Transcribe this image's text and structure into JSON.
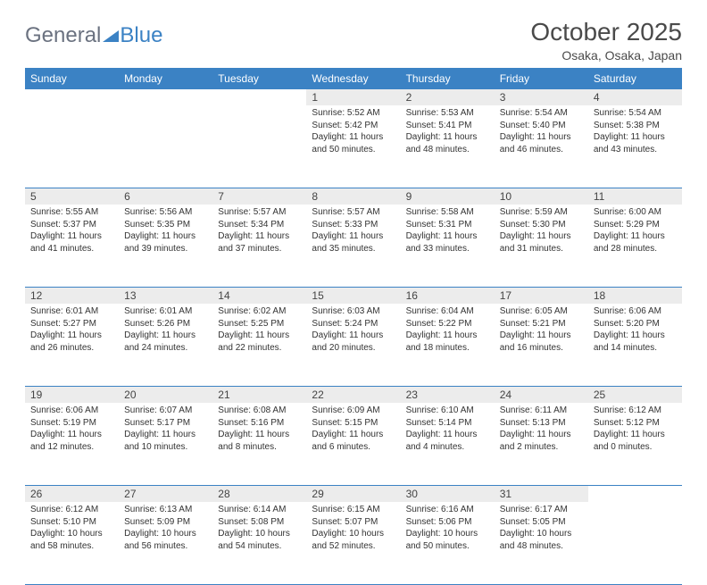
{
  "brand": {
    "part1": "General",
    "part2": "Blue",
    "logo_color_text": "#6b7280",
    "logo_color_accent": "#3b82c4"
  },
  "title": "October 2025",
  "location": "Osaka, Osaka, Japan",
  "theme": {
    "header_bg": "#3b82c4",
    "header_text": "#ffffff",
    "daynum_bg": "#ececec",
    "rule_color": "#3b82c4",
    "body_text": "#333333",
    "title_color": "#4a4a4a"
  },
  "weekdays": [
    "Sunday",
    "Monday",
    "Tuesday",
    "Wednesday",
    "Thursday",
    "Friday",
    "Saturday"
  ],
  "weeks": [
    [
      null,
      null,
      null,
      {
        "n": "1",
        "sr": "Sunrise: 5:52 AM",
        "ss": "Sunset: 5:42 PM",
        "d1": "Daylight: 11 hours",
        "d2": "and 50 minutes."
      },
      {
        "n": "2",
        "sr": "Sunrise: 5:53 AM",
        "ss": "Sunset: 5:41 PM",
        "d1": "Daylight: 11 hours",
        "d2": "and 48 minutes."
      },
      {
        "n": "3",
        "sr": "Sunrise: 5:54 AM",
        "ss": "Sunset: 5:40 PM",
        "d1": "Daylight: 11 hours",
        "d2": "and 46 minutes."
      },
      {
        "n": "4",
        "sr": "Sunrise: 5:54 AM",
        "ss": "Sunset: 5:38 PM",
        "d1": "Daylight: 11 hours",
        "d2": "and 43 minutes."
      }
    ],
    [
      {
        "n": "5",
        "sr": "Sunrise: 5:55 AM",
        "ss": "Sunset: 5:37 PM",
        "d1": "Daylight: 11 hours",
        "d2": "and 41 minutes."
      },
      {
        "n": "6",
        "sr": "Sunrise: 5:56 AM",
        "ss": "Sunset: 5:35 PM",
        "d1": "Daylight: 11 hours",
        "d2": "and 39 minutes."
      },
      {
        "n": "7",
        "sr": "Sunrise: 5:57 AM",
        "ss": "Sunset: 5:34 PM",
        "d1": "Daylight: 11 hours",
        "d2": "and 37 minutes."
      },
      {
        "n": "8",
        "sr": "Sunrise: 5:57 AM",
        "ss": "Sunset: 5:33 PM",
        "d1": "Daylight: 11 hours",
        "d2": "and 35 minutes."
      },
      {
        "n": "9",
        "sr": "Sunrise: 5:58 AM",
        "ss": "Sunset: 5:31 PM",
        "d1": "Daylight: 11 hours",
        "d2": "and 33 minutes."
      },
      {
        "n": "10",
        "sr": "Sunrise: 5:59 AM",
        "ss": "Sunset: 5:30 PM",
        "d1": "Daylight: 11 hours",
        "d2": "and 31 minutes."
      },
      {
        "n": "11",
        "sr": "Sunrise: 6:00 AM",
        "ss": "Sunset: 5:29 PM",
        "d1": "Daylight: 11 hours",
        "d2": "and 28 minutes."
      }
    ],
    [
      {
        "n": "12",
        "sr": "Sunrise: 6:01 AM",
        "ss": "Sunset: 5:27 PM",
        "d1": "Daylight: 11 hours",
        "d2": "and 26 minutes."
      },
      {
        "n": "13",
        "sr": "Sunrise: 6:01 AM",
        "ss": "Sunset: 5:26 PM",
        "d1": "Daylight: 11 hours",
        "d2": "and 24 minutes."
      },
      {
        "n": "14",
        "sr": "Sunrise: 6:02 AM",
        "ss": "Sunset: 5:25 PM",
        "d1": "Daylight: 11 hours",
        "d2": "and 22 minutes."
      },
      {
        "n": "15",
        "sr": "Sunrise: 6:03 AM",
        "ss": "Sunset: 5:24 PM",
        "d1": "Daylight: 11 hours",
        "d2": "and 20 minutes."
      },
      {
        "n": "16",
        "sr": "Sunrise: 6:04 AM",
        "ss": "Sunset: 5:22 PM",
        "d1": "Daylight: 11 hours",
        "d2": "and 18 minutes."
      },
      {
        "n": "17",
        "sr": "Sunrise: 6:05 AM",
        "ss": "Sunset: 5:21 PM",
        "d1": "Daylight: 11 hours",
        "d2": "and 16 minutes."
      },
      {
        "n": "18",
        "sr": "Sunrise: 6:06 AM",
        "ss": "Sunset: 5:20 PM",
        "d1": "Daylight: 11 hours",
        "d2": "and 14 minutes."
      }
    ],
    [
      {
        "n": "19",
        "sr": "Sunrise: 6:06 AM",
        "ss": "Sunset: 5:19 PM",
        "d1": "Daylight: 11 hours",
        "d2": "and 12 minutes."
      },
      {
        "n": "20",
        "sr": "Sunrise: 6:07 AM",
        "ss": "Sunset: 5:17 PM",
        "d1": "Daylight: 11 hours",
        "d2": "and 10 minutes."
      },
      {
        "n": "21",
        "sr": "Sunrise: 6:08 AM",
        "ss": "Sunset: 5:16 PM",
        "d1": "Daylight: 11 hours",
        "d2": "and 8 minutes."
      },
      {
        "n": "22",
        "sr": "Sunrise: 6:09 AM",
        "ss": "Sunset: 5:15 PM",
        "d1": "Daylight: 11 hours",
        "d2": "and 6 minutes."
      },
      {
        "n": "23",
        "sr": "Sunrise: 6:10 AM",
        "ss": "Sunset: 5:14 PM",
        "d1": "Daylight: 11 hours",
        "d2": "and 4 minutes."
      },
      {
        "n": "24",
        "sr": "Sunrise: 6:11 AM",
        "ss": "Sunset: 5:13 PM",
        "d1": "Daylight: 11 hours",
        "d2": "and 2 minutes."
      },
      {
        "n": "25",
        "sr": "Sunrise: 6:12 AM",
        "ss": "Sunset: 5:12 PM",
        "d1": "Daylight: 11 hours",
        "d2": "and 0 minutes."
      }
    ],
    [
      {
        "n": "26",
        "sr": "Sunrise: 6:12 AM",
        "ss": "Sunset: 5:10 PM",
        "d1": "Daylight: 10 hours",
        "d2": "and 58 minutes."
      },
      {
        "n": "27",
        "sr": "Sunrise: 6:13 AM",
        "ss": "Sunset: 5:09 PM",
        "d1": "Daylight: 10 hours",
        "d2": "and 56 minutes."
      },
      {
        "n": "28",
        "sr": "Sunrise: 6:14 AM",
        "ss": "Sunset: 5:08 PM",
        "d1": "Daylight: 10 hours",
        "d2": "and 54 minutes."
      },
      {
        "n": "29",
        "sr": "Sunrise: 6:15 AM",
        "ss": "Sunset: 5:07 PM",
        "d1": "Daylight: 10 hours",
        "d2": "and 52 minutes."
      },
      {
        "n": "30",
        "sr": "Sunrise: 6:16 AM",
        "ss": "Sunset: 5:06 PM",
        "d1": "Daylight: 10 hours",
        "d2": "and 50 minutes."
      },
      {
        "n": "31",
        "sr": "Sunrise: 6:17 AM",
        "ss": "Sunset: 5:05 PM",
        "d1": "Daylight: 10 hours",
        "d2": "and 48 minutes."
      },
      null
    ]
  ]
}
